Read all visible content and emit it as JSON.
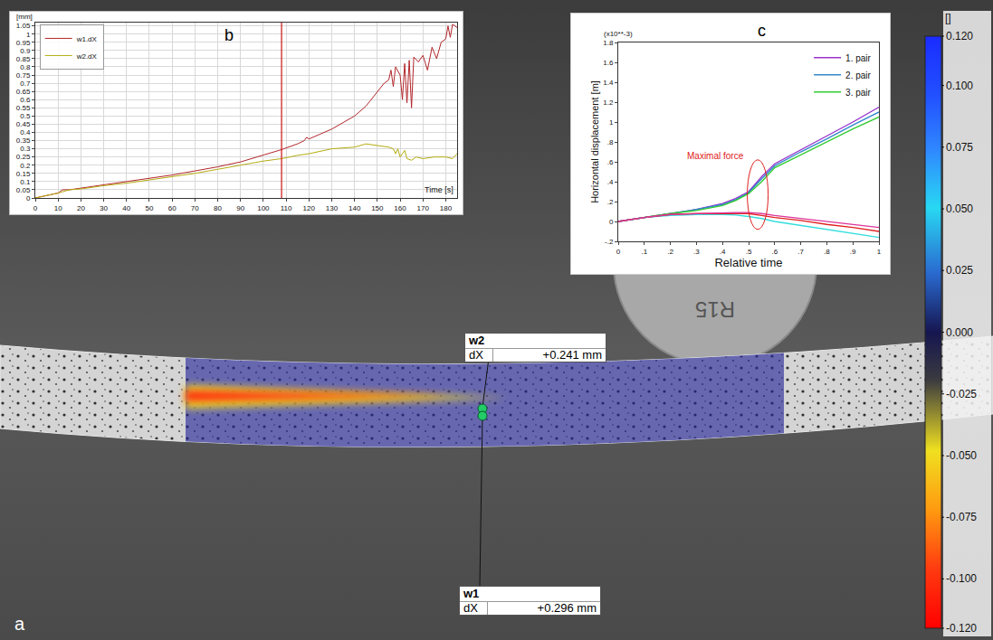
{
  "chart_data": [
    {
      "panel": "b",
      "type": "line",
      "y_unit": "[mm]",
      "x_label": "Time [s]",
      "xlim": [
        0,
        185
      ],
      "xticks": [
        0,
        10,
        20,
        30,
        40,
        50,
        60,
        70,
        80,
        90,
        100,
        110,
        120,
        130,
        140,
        150,
        160,
        170,
        180
      ],
      "ylim": [
        0,
        1.07
      ],
      "yticks": [
        0,
        0.05,
        0.1,
        0.15,
        0.2,
        0.25,
        0.3,
        0.35,
        0.4,
        0.45,
        0.5,
        0.55,
        0.6,
        0.65,
        0.7,
        0.75,
        0.8,
        0.85,
        0.9,
        0.95,
        1,
        1.05
      ],
      "grid": true,
      "legend": "top left",
      "cursor_x": 108,
      "series": [
        {
          "name": "w1.dX",
          "color": "#b3262b",
          "x": [
            0,
            5,
            10,
            12,
            15,
            20,
            30,
            40,
            50,
            60,
            70,
            80,
            90,
            100,
            108,
            115,
            118,
            119,
            120,
            125,
            130,
            135,
            140,
            145,
            150,
            153,
            155,
            156,
            157,
            158,
            160,
            161,
            162,
            163,
            164,
            165,
            166,
            168,
            170,
            172,
            174,
            176,
            178,
            180,
            181,
            182,
            183,
            185
          ],
          "values": [
            0,
            0.015,
            0.03,
            0.05,
            0.05,
            0.06,
            0.08,
            0.1,
            0.12,
            0.14,
            0.165,
            0.19,
            0.22,
            0.26,
            0.295,
            0.33,
            0.35,
            0.37,
            0.36,
            0.39,
            0.42,
            0.46,
            0.5,
            0.56,
            0.65,
            0.7,
            0.72,
            0.78,
            0.68,
            0.8,
            0.75,
            0.6,
            0.82,
            0.58,
            0.84,
            0.55,
            0.86,
            0.83,
            0.87,
            0.78,
            0.92,
            0.85,
            0.95,
            0.97,
            1.05,
            0.98,
            1.06,
            1.04
          ]
        },
        {
          "name": "w2.dX",
          "color": "#b5ac10",
          "x": [
            0,
            5,
            10,
            15,
            20,
            30,
            40,
            50,
            60,
            70,
            80,
            90,
            100,
            108,
            115,
            120,
            130,
            140,
            145,
            150,
            155,
            157,
            158,
            159,
            160,
            162,
            163,
            165,
            167,
            170,
            175,
            180,
            183,
            185
          ],
          "values": [
            0,
            0.015,
            0.03,
            0.05,
            0.055,
            0.075,
            0.09,
            0.11,
            0.13,
            0.15,
            0.175,
            0.2,
            0.225,
            0.24,
            0.26,
            0.27,
            0.3,
            0.31,
            0.33,
            0.32,
            0.31,
            0.3,
            0.27,
            0.3,
            0.25,
            0.29,
            0.24,
            0.23,
            0.25,
            0.24,
            0.25,
            0.25,
            0.24,
            0.27
          ]
        }
      ]
    },
    {
      "panel": "c",
      "type": "line",
      "x_label": "Relative time",
      "y_label": "Horizontal displacement [m]",
      "y_scale_label": "(x10**-3)",
      "xlim": [
        0,
        1
      ],
      "xticks": [
        0,
        {
          "value": 0.1,
          "label": ".1"
        },
        {
          "value": 0.2,
          "label": ".2"
        },
        {
          "value": 0.3,
          "label": ".3"
        },
        {
          "value": 0.4,
          "label": ".4"
        },
        {
          "value": 0.5,
          "label": ".5"
        },
        {
          "value": 0.6,
          "label": ".6"
        },
        {
          "value": 0.7,
          "label": ".7"
        },
        {
          "value": 0.8,
          "label": ".8"
        },
        {
          "value": 0.9,
          "label": ".9"
        },
        1
      ],
      "ylim": [
        -0.2,
        1.8
      ],
      "yticks": [
        {
          "value": -0.2,
          "label": "-.2"
        },
        0,
        {
          "value": 0.2,
          "label": ".2"
        },
        {
          "value": 0.4,
          "label": ".4"
        },
        {
          "value": 0.6,
          "label": ".6"
        },
        {
          "value": 0.8,
          "label": ".8"
        },
        1,
        1.2,
        1.4,
        1.6,
        1.8
      ],
      "grid": false,
      "legend": "top right",
      "annotation": {
        "text": "Maximal force",
        "x": 0.49,
        "y": 0.66,
        "color": "#e02020",
        "ellipse_x": [
          0.495,
          0.575
        ],
        "ellipse_y": [
          -0.08,
          0.62
        ]
      },
      "x": [
        0,
        0.1,
        0.2,
        0.3,
        0.4,
        0.45,
        0.5,
        0.55,
        0.6,
        0.7,
        0.8,
        0.9,
        1
      ],
      "series": [
        {
          "name": "1. pair",
          "color": "#9933cc",
          "values": [
            0,
            0.04,
            0.08,
            0.12,
            0.18,
            0.23,
            0.3,
            0.45,
            0.58,
            0.72,
            0.86,
            1.0,
            1.15
          ]
        },
        {
          "name": "2. pair",
          "color": "#3388cc",
          "values": [
            0,
            0.04,
            0.08,
            0.12,
            0.17,
            0.22,
            0.29,
            0.43,
            0.56,
            0.7,
            0.83,
            0.97,
            1.1
          ]
        },
        {
          "name": "3. pair",
          "color": "#33cc33",
          "values": [
            0,
            0.04,
            0.08,
            0.11,
            0.16,
            0.21,
            0.28,
            0.4,
            0.54,
            0.67,
            0.8,
            0.93,
            1.05
          ]
        },
        {
          "color": "#33dddd",
          "values": [
            0,
            0.04,
            0.06,
            0.07,
            0.07,
            0.065,
            0.05,
            0.03,
            0.0,
            -0.04,
            -0.08,
            -0.12,
            -0.16
          ]
        },
        {
          "color": "#e02020",
          "values": [
            0,
            0.04,
            0.07,
            0.08,
            0.08,
            0.08,
            0.08,
            0.06,
            0.04,
            0.01,
            -0.03,
            -0.06,
            -0.1
          ]
        },
        {
          "color": "#dd3399",
          "values": [
            0,
            0.04,
            0.07,
            0.08,
            0.09,
            0.09,
            0.09,
            0.08,
            0.06,
            0.03,
            0.0,
            -0.03,
            -0.06
          ]
        }
      ]
    }
  ],
  "photo": {
    "panel": "a",
    "roller_label": "R15",
    "points": [
      {
        "name": "w2",
        "quantity": "dX",
        "value_label": "+0.241 mm"
      },
      {
        "name": "w1",
        "quantity": "dX",
        "value_label": "+0.296 mm"
      }
    ],
    "colorbar": {
      "unit": "[]",
      "range": [
        -0.12,
        0.12
      ],
      "ticks": [
        {
          "value": 0.12,
          "label": "0.120"
        },
        {
          "value": 0.1,
          "label": "0.100"
        },
        {
          "value": 0.075,
          "label": "0.075"
        },
        {
          "value": 0.05,
          "label": "0.050"
        },
        {
          "value": 0.025,
          "label": "0.025"
        },
        {
          "value": 0,
          "label": "0.000"
        },
        {
          "value": -0.025,
          "label": "-0.025"
        },
        {
          "value": -0.05,
          "label": "-0.050"
        },
        {
          "value": -0.075,
          "label": "-0.075"
        },
        {
          "value": -0.1,
          "label": "-0.100"
        },
        {
          "value": -0.12,
          "label": "-0.120"
        }
      ]
    }
  }
}
